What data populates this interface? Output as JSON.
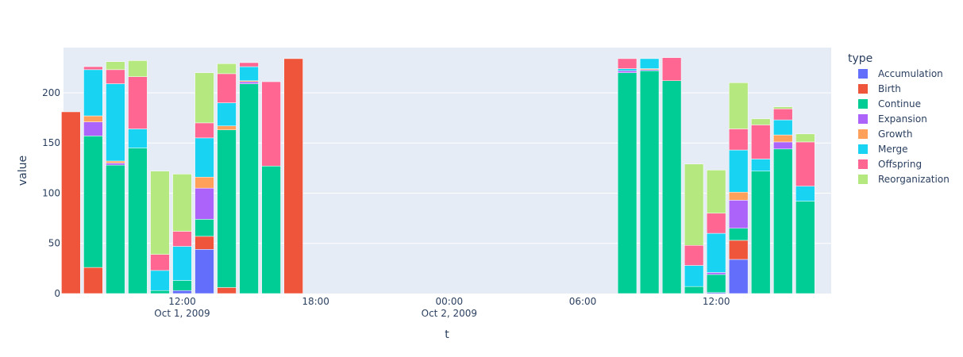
{
  "chart_data": {
    "type": "bar",
    "barmode": "stack",
    "xlabel": "t",
    "ylabel": "value",
    "ylim": [
      0,
      245
    ],
    "yticks": [
      0,
      50,
      100,
      150,
      200
    ],
    "xlim": [
      "2009-10-01 06:40",
      "2009-10-02 17:10"
    ],
    "xticks": [
      {
        "t": "2009-10-01 12:00",
        "line1": "12:00",
        "line2": "Oct 1, 2009"
      },
      {
        "t": "2009-10-01 18:00",
        "line1": "18:00",
        "line2": ""
      },
      {
        "t": "2009-10-02 00:00",
        "line1": "00:00",
        "line2": "Oct 2, 2009"
      },
      {
        "t": "2009-10-02 06:00",
        "line1": "06:00",
        "line2": ""
      },
      {
        "t": "2009-10-02 12:00",
        "line1": "12:00",
        "line2": ""
      }
    ],
    "bar_width_hours": 0.85,
    "grid": true,
    "legend": {
      "title": "type",
      "position": "right"
    },
    "x": [
      "2009-10-01 07:00",
      "2009-10-01 08:00",
      "2009-10-01 09:00",
      "2009-10-01 10:00",
      "2009-10-01 11:00",
      "2009-10-01 12:00",
      "2009-10-01 13:00",
      "2009-10-01 14:00",
      "2009-10-01 15:00",
      "2009-10-01 16:00",
      "2009-10-01 17:00",
      "2009-10-02 08:00",
      "2009-10-02 09:00",
      "2009-10-02 10:00",
      "2009-10-02 11:00",
      "2009-10-02 12:00",
      "2009-10-02 13:00",
      "2009-10-02 14:00",
      "2009-10-02 15:00",
      "2009-10-02 16:00",
      "2009-10-02 17:00"
    ],
    "series": [
      {
        "name": "Accumulation",
        "color": "#636efa",
        "values": [
          0,
          0,
          0,
          0,
          0,
          3,
          44,
          0,
          0,
          0,
          0,
          0,
          0,
          0,
          0,
          1,
          34,
          0,
          0,
          0,
          0
        ]
      },
      {
        "name": "Birth",
        "color": "#ef553b",
        "values": [
          181,
          26,
          0,
          0,
          0,
          0,
          13,
          6,
          0,
          0,
          234,
          0,
          0,
          0,
          0,
          0,
          19,
          0,
          0,
          0,
          0
        ]
      },
      {
        "name": "Continue",
        "color": "#00cc96",
        "values": [
          0,
          131,
          128,
          145,
          3,
          10,
          17,
          157,
          209,
          127,
          0,
          220,
          222,
          212,
          7,
          18,
          12,
          122,
          144,
          92,
          0
        ]
      },
      {
        "name": "Expansion",
        "color": "#ab63fa",
        "values": [
          0,
          14,
          2,
          0,
          0,
          0,
          31,
          0,
          2,
          0,
          0,
          2,
          1,
          0,
          0,
          2,
          28,
          0,
          7,
          0,
          0
        ]
      },
      {
        "name": "Growth",
        "color": "#ffa15a",
        "values": [
          0,
          6,
          2,
          0,
          0,
          0,
          11,
          4,
          1,
          0,
          0,
          0,
          1,
          0,
          0,
          0,
          8,
          0,
          7,
          0,
          0
        ]
      },
      {
        "name": "Merge",
        "color": "#19d3f3",
        "values": [
          0,
          46,
          77,
          19,
          20,
          34,
          39,
          23,
          14,
          0,
          0,
          2,
          10,
          0,
          21,
          39,
          42,
          12,
          15,
          15,
          0
        ]
      },
      {
        "name": "Offspring",
        "color": "#ff6692",
        "values": [
          0,
          3,
          14,
          52,
          16,
          15,
          15,
          29,
          4,
          84,
          0,
          10,
          0,
          23,
          20,
          20,
          21,
          34,
          11,
          44,
          0
        ]
      },
      {
        "name": "Reorganization",
        "color": "#b6e880",
        "values": [
          0,
          0,
          8,
          16,
          83,
          57,
          50,
          10,
          0,
          0,
          0,
          0,
          0,
          0,
          81,
          43,
          46,
          6,
          2,
          8,
          0
        ]
      }
    ]
  }
}
